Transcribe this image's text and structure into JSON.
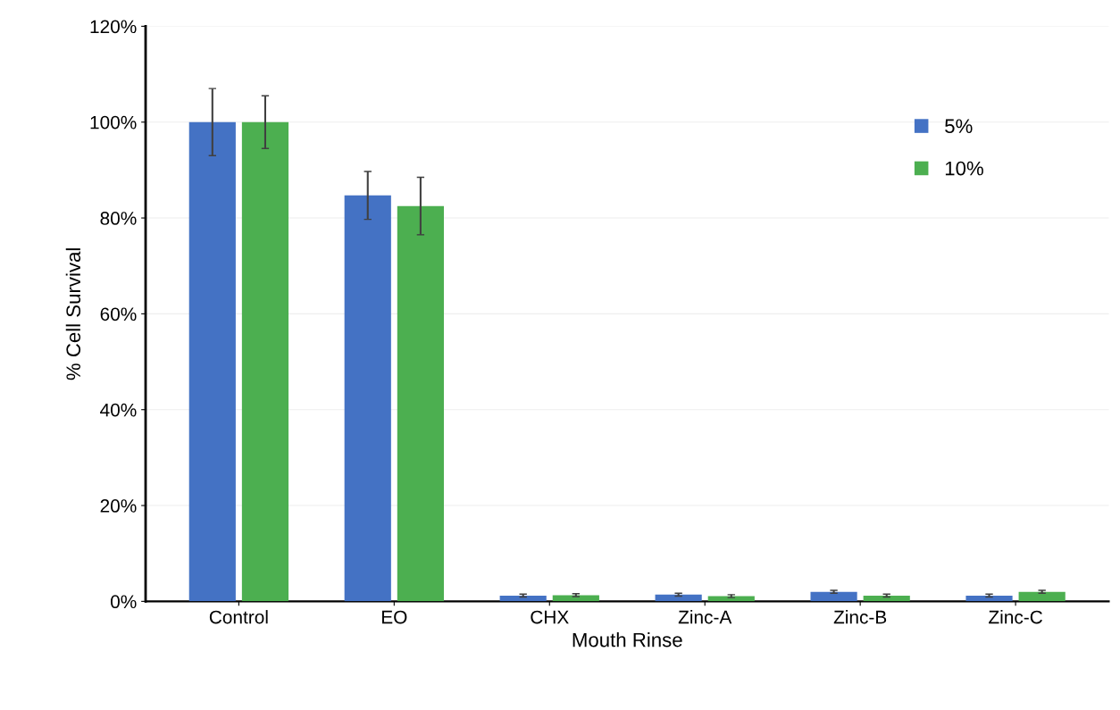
{
  "chart_data": {
    "type": "bar",
    "xlabel": "Mouth Rinse",
    "ylabel": "% Cell Survival",
    "categories": [
      "Control",
      "EO",
      "CHX",
      "Zinc-A",
      "Zinc-B",
      "Zinc-C"
    ],
    "series": [
      {
        "name": "5%",
        "color": "#4472c4",
        "values": [
          100,
          84.7,
          1.2,
          1.4,
          2.0,
          1.2
        ],
        "errors": [
          7,
          5,
          0.3,
          0.3,
          0.3,
          0.3
        ]
      },
      {
        "name": "10%",
        "color": "#4caf50",
        "values": [
          100,
          82.5,
          1.3,
          1.1,
          1.2,
          2.0
        ],
        "errors": [
          5.5,
          6,
          0.3,
          0.3,
          0.3,
          0.3
        ]
      }
    ],
    "ylim": [
      0,
      120
    ],
    "yticks": [
      {
        "value": 0,
        "label": "0%"
      },
      {
        "value": 20,
        "label": "20%"
      },
      {
        "value": 40,
        "label": "40%"
      },
      {
        "value": 60,
        "label": "60%"
      },
      {
        "value": 80,
        "label": "80%"
      },
      {
        "value": 100,
        "label": "100%"
      },
      {
        "value": 120,
        "label": "120%"
      }
    ],
    "grid": "y",
    "legend": "top right"
  }
}
